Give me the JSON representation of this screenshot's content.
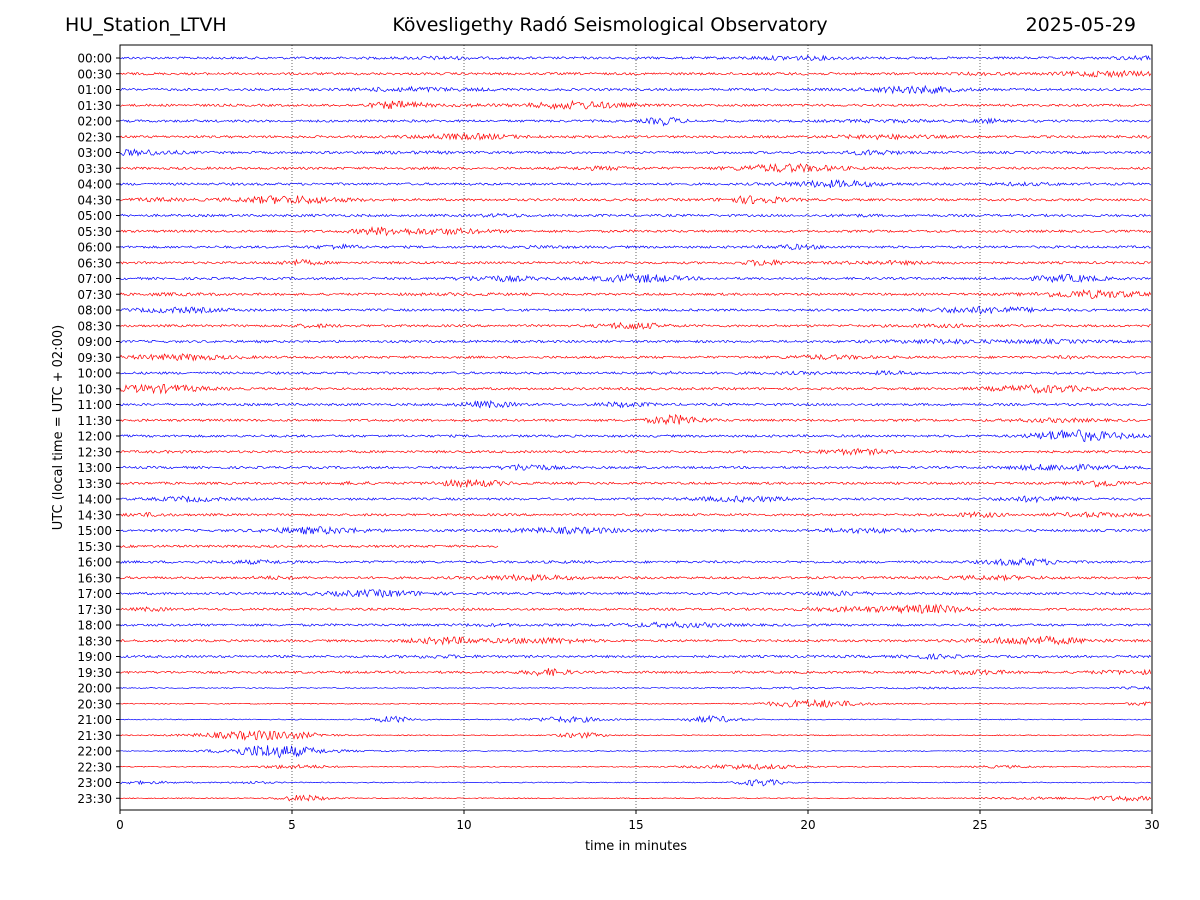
{
  "header": {
    "station": "HU_Station_LTVH",
    "observatory": "Kövesligethy Radó Seismological Observatory",
    "date": "2025-05-29"
  },
  "chart_data": {
    "type": "line",
    "title": "Kövesligethy Radó Seismological Observatory",
    "xlabel": "time in minutes",
    "ylabel": "UTC (local time = UTC + 02:00)",
    "xlim": [
      0,
      30
    ],
    "x_ticks": [
      0,
      5,
      10,
      15,
      20,
      25,
      30
    ],
    "grid_x": true,
    "colors": {
      "even_row": "#0000ff",
      "odd_row": "#ff0000"
    },
    "rows": [
      "00:00",
      "00:30",
      "01:00",
      "01:30",
      "02:00",
      "02:30",
      "03:00",
      "03:30",
      "04:00",
      "04:30",
      "05:00",
      "05:30",
      "06:00",
      "06:30",
      "07:00",
      "07:30",
      "08:00",
      "08:30",
      "09:00",
      "09:30",
      "10:00",
      "10:30",
      "11:00",
      "11:30",
      "12:00",
      "12:30",
      "13:00",
      "13:30",
      "14:00",
      "14:30",
      "15:00",
      "15:30",
      "16:00",
      "16:30",
      "17:00",
      "17:30",
      "18:00",
      "18:30",
      "19:00",
      "19:30",
      "20:00",
      "20:30",
      "21:00",
      "21:30",
      "22:00",
      "22:30",
      "23:00",
      "23:30"
    ],
    "row_end_minutes": {
      "15:30": 11
    }
  }
}
